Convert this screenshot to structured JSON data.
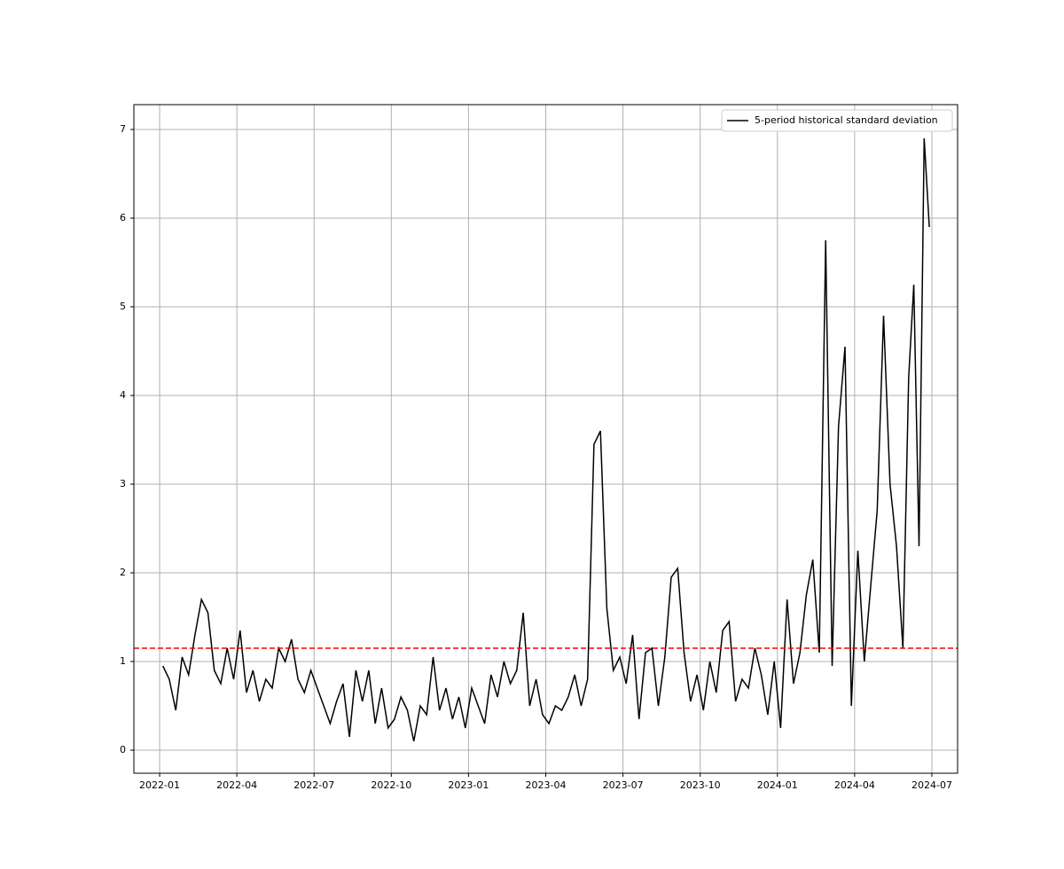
{
  "chart_data": {
    "type": "line",
    "x": [
      "2022-01",
      "2022-01",
      "2022-01",
      "2022-01",
      "2022-02",
      "2022-02",
      "2022-02",
      "2022-02",
      "2022-03",
      "2022-03",
      "2022-03",
      "2022-03",
      "2022-04",
      "2022-04",
      "2022-04",
      "2022-04",
      "2022-05",
      "2022-05",
      "2022-05",
      "2022-05",
      "2022-06",
      "2022-06",
      "2022-06",
      "2022-06",
      "2022-07",
      "2022-07",
      "2022-07",
      "2022-07",
      "2022-08",
      "2022-08",
      "2022-08",
      "2022-08",
      "2022-09",
      "2022-09",
      "2022-09",
      "2022-09",
      "2022-10",
      "2022-10",
      "2022-10",
      "2022-10",
      "2022-11",
      "2022-11",
      "2022-11",
      "2022-11",
      "2022-12",
      "2022-12",
      "2022-12",
      "2022-12",
      "2023-01",
      "2023-01",
      "2023-01",
      "2023-01",
      "2023-02",
      "2023-02",
      "2023-02",
      "2023-02",
      "2023-03",
      "2023-03",
      "2023-03",
      "2023-03",
      "2023-04",
      "2023-04",
      "2023-04",
      "2023-04",
      "2023-05",
      "2023-05",
      "2023-05",
      "2023-05",
      "2023-06",
      "2023-06",
      "2023-06",
      "2023-06",
      "2023-07",
      "2023-07",
      "2023-07",
      "2023-07",
      "2023-08",
      "2023-08",
      "2023-08",
      "2023-08",
      "2023-09",
      "2023-09",
      "2023-09",
      "2023-09",
      "2023-10",
      "2023-10",
      "2023-10",
      "2023-10",
      "2023-11",
      "2023-11",
      "2023-11",
      "2023-11",
      "2023-12",
      "2023-12",
      "2023-12",
      "2023-12",
      "2024-01",
      "2024-01",
      "2024-01",
      "2024-01",
      "2024-02",
      "2024-02",
      "2024-02",
      "2024-02",
      "2024-03",
      "2024-03",
      "2024-03",
      "2024-03",
      "2024-04",
      "2024-04",
      "2024-04",
      "2024-04",
      "2024-05",
      "2024-05",
      "2024-05",
      "2024-05",
      "2024-06",
      "2024-06",
      "2024-06",
      "2024-06",
      "2024-06"
    ],
    "series": [
      {
        "name": "5-period historical standard deviation",
        "color": "#000000",
        "values": [
          0.95,
          0.8,
          0.45,
          1.05,
          0.85,
          1.3,
          1.7,
          1.55,
          0.9,
          0.75,
          1.15,
          0.8,
          1.35,
          0.65,
          0.9,
          0.55,
          0.8,
          0.7,
          1.15,
          1.0,
          1.25,
          0.8,
          0.65,
          0.9,
          0.7,
          0.5,
          0.3,
          0.55,
          0.75,
          0.15,
          0.9,
          0.55,
          0.9,
          0.3,
          0.7,
          0.25,
          0.35,
          0.6,
          0.45,
          0.1,
          0.5,
          0.4,
          1.05,
          0.45,
          0.7,
          0.35,
          0.6,
          0.25,
          0.7,
          0.5,
          0.3,
          0.85,
          0.6,
          1.0,
          0.75,
          0.9,
          1.55,
          0.5,
          0.8,
          0.4,
          0.3,
          0.5,
          0.45,
          0.6,
          0.85,
          0.5,
          0.8,
          3.45,
          3.6,
          1.6,
          0.9,
          1.05,
          0.75,
          1.3,
          0.35,
          1.1,
          1.15,
          0.5,
          1.05,
          1.95,
          2.05,
          1.1,
          0.55,
          0.85,
          0.45,
          1.0,
          0.65,
          1.35,
          1.45,
          0.55,
          0.8,
          0.7,
          1.15,
          0.85,
          0.4,
          1.0,
          0.25,
          1.7,
          0.75,
          1.1,
          1.75,
          2.15,
          1.1,
          5.75,
          0.95,
          3.65,
          4.55,
          0.5,
          2.25,
          1.0,
          1.85,
          2.7,
          4.9,
          3.0,
          2.3,
          1.15,
          4.2,
          5.25,
          2.3,
          6.9,
          5.9
        ]
      }
    ],
    "hline": {
      "value": 1.15,
      "color": "#ff0000"
    },
    "xlim": [
      "2021-12",
      "2024-08"
    ],
    "xticks": [
      "2022-01",
      "2022-04",
      "2022-07",
      "2022-10",
      "2023-01",
      "2023-04",
      "2023-07",
      "2023-10",
      "2024-01",
      "2024-04",
      "2024-07"
    ],
    "ylim": [
      -0.26,
      7.28
    ],
    "yticks": [
      0,
      1,
      2,
      3,
      4,
      5,
      6,
      7
    ],
    "grid": true,
    "legend": "upper right"
  }
}
